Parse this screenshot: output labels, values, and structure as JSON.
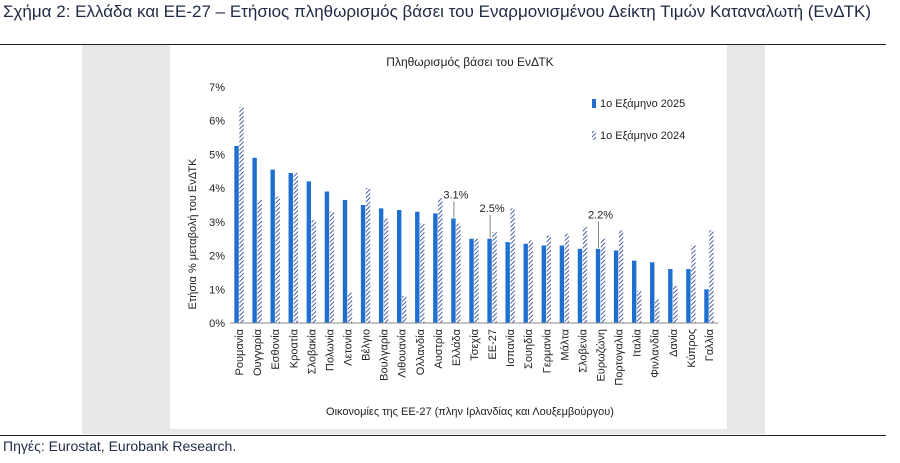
{
  "figure": {
    "heading": "Σχήμα 2: Ελλάδα και ΕΕ-27 – Ετήσιος πληθωρισμός βάσει του Εναρμονισμένου Δείκτη Τιμών Καταναλωτή (ΕνΔΤΚ)",
    "source": "Πηγές: Eurostat, Eurobank Research."
  },
  "colors": {
    "series_2025": "#1f6fd1",
    "series_2024": "#4a5fa3",
    "panel_background": "#e7e7e7",
    "text": "#1f2a44"
  },
  "chart_data": {
    "type": "bar",
    "title": "Πληθωρισμός βάσει του ΕνΔΤΚ",
    "xlabel": "Οικονομίες της ΕΕ-27 (πλην Ιρλανδίας και Λουξεμβούργου)",
    "ylabel": "Ετήσια % μεταβολή του ΕνΔΤΚ",
    "ylim": [
      0,
      7
    ],
    "yticks": [
      "0%",
      "1%",
      "2%",
      "3%",
      "4%",
      "5%",
      "6%",
      "7%"
    ],
    "grid": false,
    "legend_position": "top-right",
    "categories": [
      "Ρουμανία",
      "Ουγγαρία",
      "Εσθονία",
      "Κροατία",
      "Σλοβακία",
      "Πολωνία",
      "Λετονία",
      "Βέλγιο",
      "Βουλγαρία",
      "Λιθουανία",
      "Ολλανδία",
      "Αυστρία",
      "Ελλάδα",
      "Τσεχία",
      "ΕΕ-27",
      "Ισπανία",
      "Σουηδία",
      "Γερμανία",
      "Μάλτα",
      "Σλοβενία",
      "Ευρωζώνη",
      "Πορτογαλία",
      "Ιταλία",
      "Φινλανδία",
      "Δανία",
      "Κύπρος",
      "Γαλλία"
    ],
    "series": [
      {
        "name": "1ο Εξάμηνο 2025",
        "style": "solid",
        "values": [
          5.25,
          4.9,
          4.55,
          4.45,
          4.2,
          3.9,
          3.65,
          3.5,
          3.4,
          3.35,
          3.3,
          3.25,
          3.1,
          2.5,
          2.5,
          2.4,
          2.35,
          2.3,
          2.3,
          2.2,
          2.2,
          2.15,
          1.85,
          1.8,
          1.6,
          1.6,
          1.0
        ]
      },
      {
        "name": "1ο Εξάμηνο 2024",
        "style": "hatched",
        "values": [
          6.4,
          3.65,
          3.75,
          4.45,
          3.05,
          3.3,
          0.9,
          4.0,
          3.1,
          0.8,
          2.95,
          3.7,
          2.95,
          2.5,
          2.7,
          3.4,
          2.45,
          2.6,
          2.65,
          2.85,
          2.5,
          2.75,
          0.95,
          0.7,
          1.1,
          2.3,
          2.75
        ]
      }
    ],
    "annotations": [
      {
        "category": "Ελλάδα",
        "text": "3.1%"
      },
      {
        "category": "ΕΕ-27",
        "text": "2.5%"
      },
      {
        "category": "Ευρωζώνη",
        "text": "2.2%"
      }
    ]
  }
}
